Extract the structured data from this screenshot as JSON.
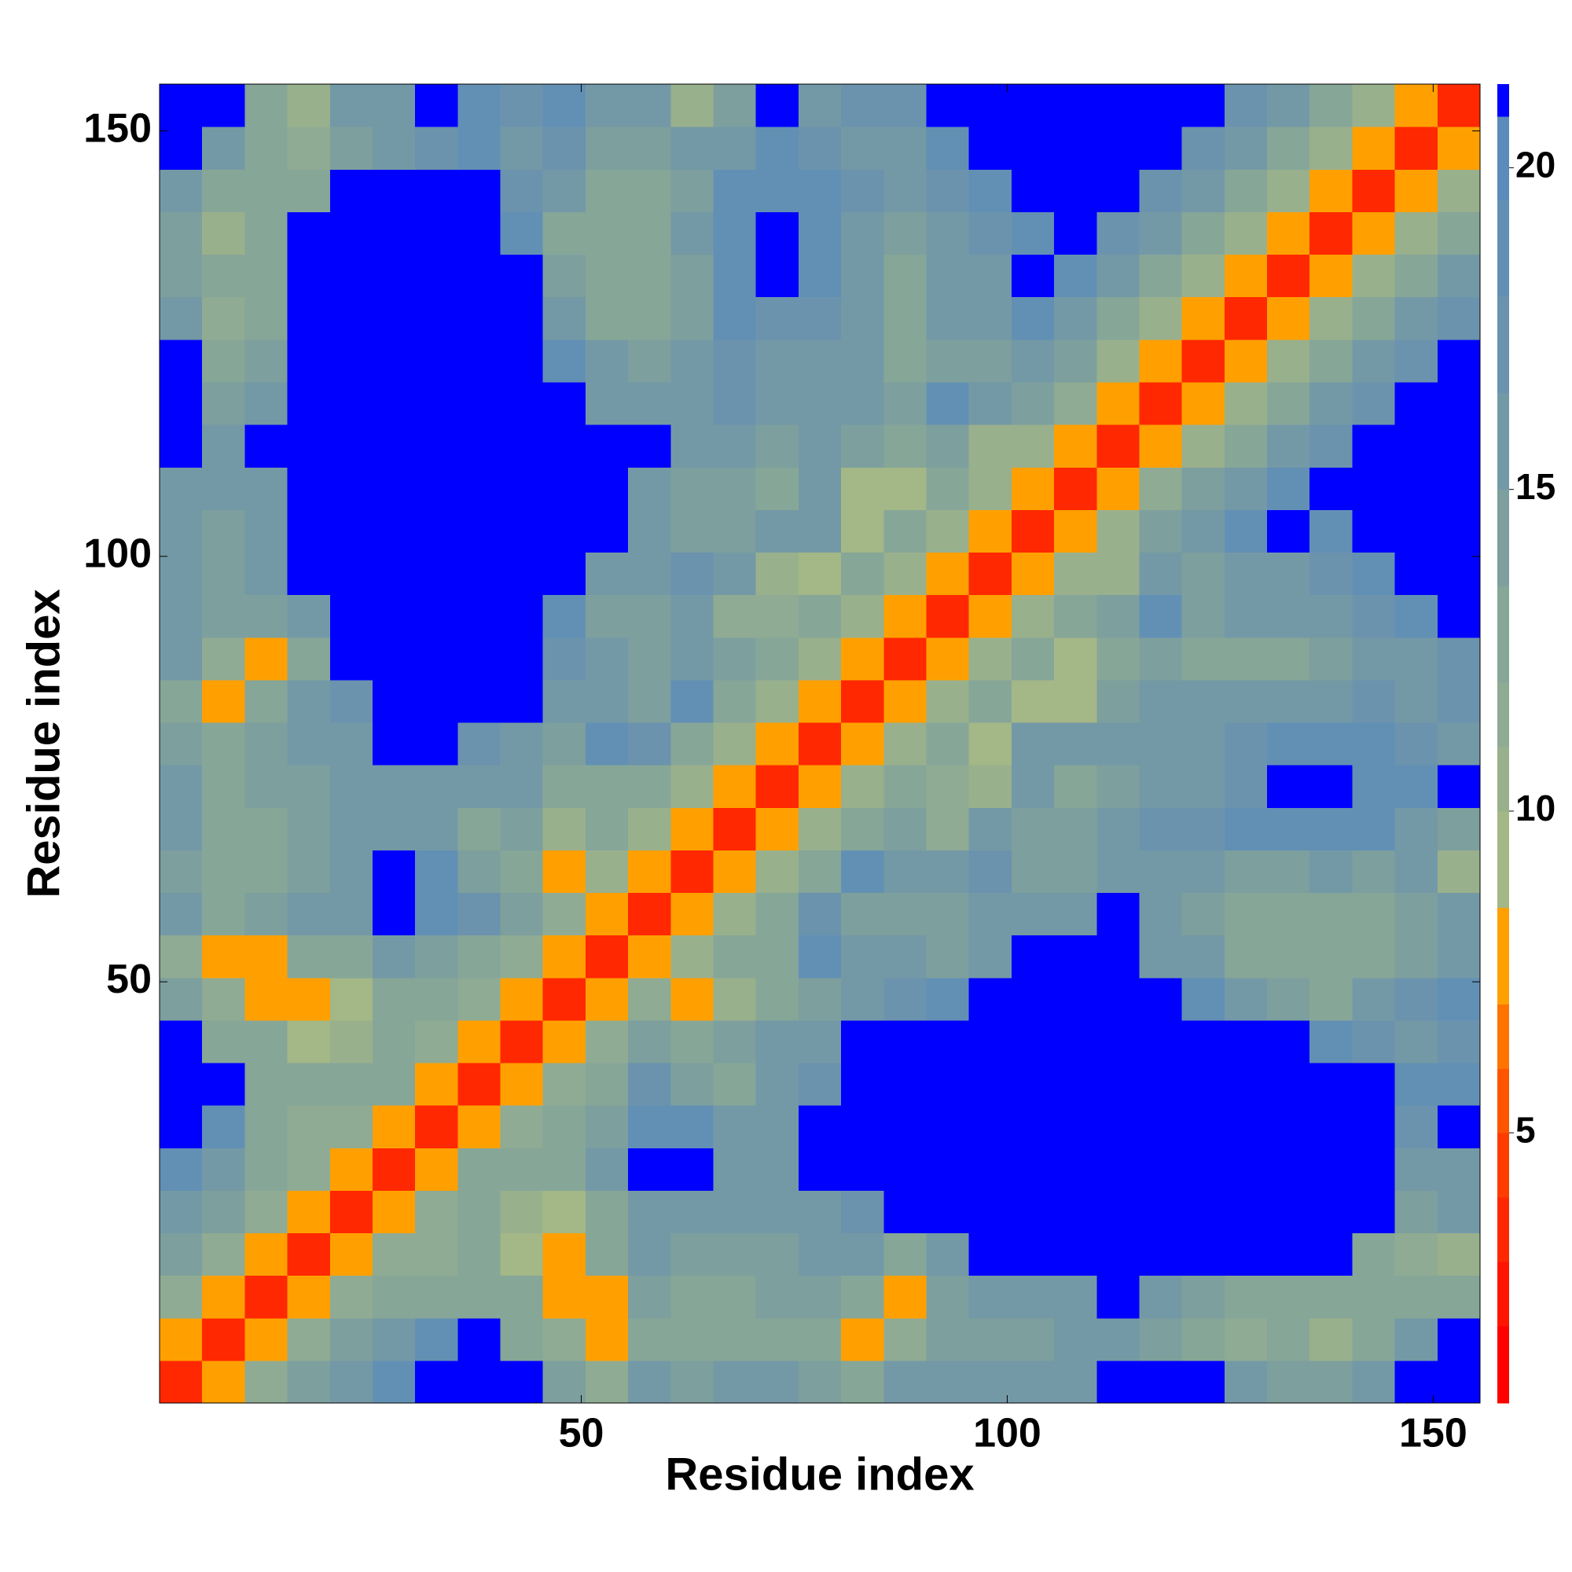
{
  "chart_data": {
    "type": "heatmap",
    "xlabel": "Residue index",
    "ylabel": "Residue index",
    "x": [
      3,
      8,
      13,
      18,
      23,
      28,
      33,
      38,
      43,
      48,
      53,
      58,
      63,
      68,
      73,
      78,
      83,
      88,
      93,
      98,
      103,
      108,
      113,
      118,
      123,
      128,
      133,
      138,
      143,
      148,
      153
    ],
    "y": [
      3,
      8,
      13,
      18,
      23,
      28,
      33,
      38,
      43,
      48,
      53,
      58,
      63,
      68,
      73,
      78,
      83,
      88,
      93,
      98,
      103,
      108,
      113,
      118,
      123,
      128,
      133,
      138,
      143,
      148,
      153
    ],
    "values": [
      [
        3,
        7,
        11,
        14,
        16,
        18,
        21,
        21,
        21,
        14,
        11,
        15,
        14,
        15,
        15,
        14,
        12,
        15,
        16,
        16,
        15,
        16,
        21,
        21,
        21,
        16,
        14,
        14,
        16,
        21,
        21
      ],
      [
        7,
        3,
        7,
        11,
        14,
        15,
        18,
        21,
        13,
        11,
        7,
        13,
        13,
        13,
        13,
        13,
        8,
        11,
        14,
        14,
        14,
        15,
        16,
        14,
        12,
        11,
        12,
        10,
        12,
        15,
        21
      ],
      [
        11,
        7,
        3,
        7,
        11,
        13,
        12,
        13,
        12,
        7,
        8,
        14,
        13,
        13,
        14,
        14,
        12,
        8,
        14,
        16,
        16,
        15,
        21,
        16,
        14,
        13,
        13,
        12,
        12,
        13,
        12
      ],
      [
        14,
        11,
        7,
        3,
        7,
        11,
        11,
        12,
        9,
        7,
        12,
        15,
        14,
        14,
        14,
        16,
        15,
        13,
        16,
        21,
        21,
        21,
        21,
        21,
        21,
        21,
        21,
        21,
        13,
        11,
        10
      ],
      [
        16,
        14,
        11,
        7,
        3,
        7,
        11,
        13,
        10,
        9,
        13,
        16,
        15,
        16,
        15,
        16,
        17,
        21,
        21,
        21,
        21,
        21,
        21,
        21,
        21,
        21,
        21,
        21,
        21,
        14,
        15
      ],
      [
        18,
        15,
        13,
        11,
        7,
        3,
        7,
        12,
        12,
        13,
        15,
        21,
        21,
        15,
        16,
        21,
        21,
        21,
        21,
        21,
        21,
        21,
        21,
        21,
        21,
        21,
        21,
        21,
        21,
        16,
        16
      ],
      [
        21,
        18,
        12,
        11,
        11,
        7,
        3,
        7,
        11,
        13,
        14,
        18,
        19,
        15,
        16,
        21,
        21,
        21,
        21,
        21,
        21,
        21,
        21,
        21,
        21,
        21,
        21,
        21,
        21,
        17,
        21
      ],
      [
        21,
        21,
        13,
        12,
        13,
        12,
        7,
        3,
        7,
        11,
        12,
        17,
        14,
        13,
        16,
        17,
        21,
        21,
        21,
        21,
        21,
        21,
        21,
        21,
        21,
        21,
        21,
        21,
        21,
        18,
        18
      ],
      [
        21,
        13,
        12,
        9,
        10,
        12,
        11,
        7,
        3,
        7,
        11,
        14,
        12,
        14,
        15,
        16,
        21,
        21,
        21,
        21,
        21,
        21,
        21,
        21,
        21,
        21,
        21,
        18,
        17,
        16,
        17
      ],
      [
        14,
        11,
        7,
        7,
        9,
        13,
        13,
        11,
        7,
        3,
        7,
        11,
        8,
        10,
        13,
        14,
        16,
        17,
        19,
        21,
        21,
        21,
        21,
        21,
        18,
        15,
        14,
        13,
        15,
        17,
        18
      ],
      [
        11,
        7,
        8,
        12,
        13,
        15,
        14,
        12,
        11,
        7,
        3,
        7,
        10,
        13,
        12,
        18,
        15,
        15,
        14,
        16,
        21,
        21,
        21,
        16,
        15,
        12,
        12,
        12,
        13,
        14,
        16
      ],
      [
        15,
        13,
        14,
        15,
        16,
        21,
        18,
        17,
        14,
        11,
        7,
        3,
        7,
        10,
        13,
        17,
        14,
        14,
        14,
        15,
        16,
        15,
        21,
        16,
        14,
        13,
        12,
        13,
        12,
        14,
        15
      ],
      [
        14,
        13,
        13,
        14,
        15,
        21,
        19,
        14,
        12,
        8,
        10,
        7,
        3,
        7,
        10,
        13,
        18,
        15,
        16,
        17,
        14,
        14,
        15,
        15,
        15,
        14,
        14,
        15,
        14,
        16,
        10
      ],
      [
        15,
        13,
        13,
        14,
        16,
        15,
        15,
        13,
        14,
        10,
        13,
        10,
        7,
        3,
        7,
        10,
        13,
        14,
        11,
        16,
        14,
        14,
        15,
        17,
        17,
        18,
        18,
        18,
        18,
        16,
        14
      ],
      [
        15,
        13,
        14,
        14,
        15,
        16,
        16,
        16,
        15,
        13,
        12,
        13,
        10,
        7,
        3,
        7,
        10,
        13,
        11,
        10,
        16,
        13,
        14,
        16,
        16,
        17,
        21,
        21,
        18,
        18,
        21
      ],
      [
        14,
        13,
        14,
        16,
        16,
        21,
        21,
        17,
        16,
        14,
        18,
        17,
        13,
        10,
        7,
        3,
        7,
        10,
        13,
        9,
        15,
        16,
        15,
        16,
        16,
        17,
        18,
        18,
        18,
        17,
        16
      ],
      [
        12,
        8,
        12,
        15,
        17,
        21,
        21,
        21,
        21,
        16,
        15,
        14,
        18,
        13,
        10,
        7,
        3,
        7,
        10,
        13,
        9,
        9,
        14,
        15,
        15,
        15,
        16,
        16,
        17,
        16,
        17
      ],
      [
        15,
        11,
        8,
        13,
        21,
        21,
        21,
        21,
        21,
        17,
        15,
        14,
        15,
        14,
        13,
        10,
        7,
        3,
        7,
        10,
        13,
        9,
        13,
        14,
        13,
        12,
        13,
        14,
        15,
        16,
        17
      ],
      [
        16,
        14,
        14,
        16,
        21,
        21,
        21,
        21,
        21,
        19,
        14,
        14,
        16,
        11,
        11,
        13,
        10,
        7,
        3,
        7,
        10,
        13,
        14,
        18,
        14,
        15,
        15,
        16,
        17,
        18,
        21
      ],
      [
        16,
        14,
        16,
        21,
        21,
        21,
        21,
        21,
        21,
        21,
        16,
        15,
        17,
        16,
        10,
        9,
        13,
        10,
        7,
        3,
        7,
        10,
        10,
        16,
        14,
        15,
        16,
        17,
        18,
        21,
        21
      ],
      [
        15,
        14,
        16,
        21,
        21,
        21,
        21,
        21,
        21,
        21,
        21,
        16,
        14,
        14,
        16,
        15,
        9,
        13,
        10,
        7,
        3,
        7,
        10,
        14,
        16,
        18,
        21,
        18,
        21,
        21,
        21
      ],
      [
        16,
        15,
        15,
        21,
        21,
        21,
        21,
        21,
        21,
        21,
        21,
        15,
        14,
        14,
        13,
        16,
        9,
        9,
        13,
        10,
        7,
        3,
        7,
        11,
        14,
        16,
        18,
        21,
        21,
        21,
        21
      ],
      [
        21,
        16,
        21,
        21,
        21,
        21,
        21,
        21,
        21,
        21,
        21,
        21,
        15,
        15,
        14,
        15,
        14,
        13,
        14,
        10,
        10,
        7,
        3,
        7,
        10,
        13,
        15,
        17,
        21,
        21,
        21
      ],
      [
        21,
        14,
        16,
        21,
        21,
        21,
        21,
        21,
        21,
        21,
        16,
        16,
        15,
        17,
        16,
        16,
        15,
        14,
        18,
        16,
        14,
        11,
        7,
        3,
        7,
        10,
        13,
        15,
        17,
        21,
        21
      ],
      [
        21,
        12,
        14,
        21,
        21,
        21,
        21,
        21,
        21,
        18,
        15,
        14,
        15,
        17,
        16,
        16,
        15,
        13,
        14,
        14,
        16,
        14,
        10,
        7,
        3,
        7,
        10,
        13,
        15,
        17,
        21
      ],
      [
        16,
        11,
        13,
        21,
        21,
        21,
        21,
        21,
        21,
        15,
        12,
        13,
        14,
        18,
        17,
        17,
        15,
        12,
        15,
        15,
        18,
        16,
        13,
        10,
        7,
        3,
        7,
        10,
        13,
        15,
        17
      ],
      [
        14,
        12,
        13,
        21,
        21,
        21,
        21,
        21,
        21,
        14,
        12,
        12,
        14,
        18,
        21,
        18,
        16,
        13,
        15,
        16,
        21,
        18,
        15,
        13,
        10,
        7,
        3,
        7,
        10,
        13,
        15
      ],
      [
        14,
        10,
        12,
        21,
        21,
        21,
        21,
        21,
        18,
        13,
        12,
        13,
        15,
        18,
        21,
        18,
        16,
        14,
        16,
        17,
        18,
        21,
        17,
        15,
        13,
        10,
        7,
        3,
        7,
        10,
        13
      ],
      [
        16,
        12,
        12,
        13,
        21,
        21,
        21,
        21,
        17,
        15,
        13,
        12,
        14,
        18,
        18,
        18,
        17,
        15,
        17,
        18,
        21,
        21,
        21,
        17,
        15,
        13,
        10,
        7,
        3,
        7,
        10
      ],
      [
        21,
        15,
        13,
        11,
        14,
        16,
        17,
        18,
        16,
        17,
        14,
        14,
        16,
        16,
        18,
        17,
        16,
        16,
        18,
        21,
        21,
        21,
        21,
        21,
        17,
        15,
        13,
        10,
        7,
        3,
        7
      ],
      [
        21,
        21,
        12,
        10,
        15,
        16,
        21,
        18,
        17,
        18,
        16,
        15,
        10,
        14,
        21,
        16,
        17,
        17,
        21,
        21,
        21,
        21,
        21,
        21,
        21,
        17,
        15,
        13,
        10,
        7,
        3
      ]
    ],
    "xlim": [
      0.5,
      155.5
    ],
    "ylim": [
      0.5,
      155.5
    ],
    "xticks": [
      50,
      100,
      150
    ],
    "yticks": [
      50,
      100,
      150
    ],
    "colorbar": {
      "lim": [
        0.8,
        21.3
      ],
      "ticks": [
        5,
        10,
        15,
        20
      ],
      "bounds": [
        0.8,
        2,
        3,
        4,
        5,
        6,
        7,
        8.5,
        10,
        11,
        12,
        13.5,
        15,
        16.5,
        18,
        19.5,
        20.8,
        21.3
      ],
      "colors": [
        "#ff0000",
        "#ff1400",
        "#ff2800",
        "#ff3c00",
        "#ff5500",
        "#ff7300",
        "#ffa000",
        "#a3b787",
        "#99b08d",
        "#8fab93",
        "#86a698",
        "#7d9f9e",
        "#7499a6",
        "#6b93ad",
        "#6290b5",
        "#5a8bbb",
        "#0000ff"
      ]
    }
  }
}
